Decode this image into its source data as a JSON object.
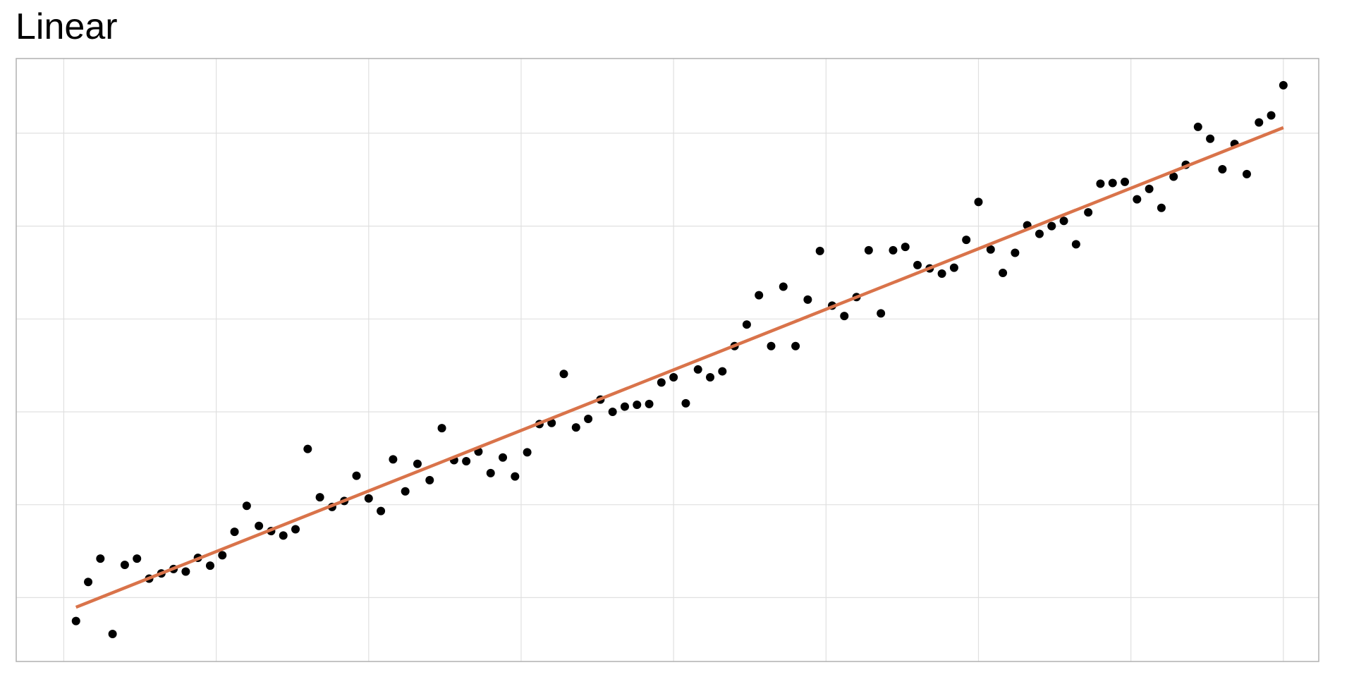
{
  "chart_data": {
    "type": "scatter",
    "title": "Linear",
    "x": [
      1,
      2,
      3,
      4,
      5,
      6,
      7,
      8,
      9,
      10,
      11,
      12,
      13,
      14,
      15,
      16,
      17,
      18,
      19,
      20,
      21,
      22,
      23,
      24,
      25,
      26,
      27,
      28,
      29,
      30,
      31,
      32,
      33,
      34,
      35,
      36,
      37,
      38,
      39,
      40,
      41,
      42,
      43,
      44,
      45,
      46,
      47,
      48,
      49,
      50,
      51,
      52,
      53,
      54,
      55,
      56,
      57,
      58,
      59,
      60,
      61,
      62,
      63,
      64,
      65,
      66,
      67,
      68,
      69,
      70,
      71,
      72,
      73,
      74,
      75,
      76,
      77,
      78,
      79,
      80,
      81,
      82,
      83,
      84,
      85,
      86,
      87,
      88,
      89,
      90,
      91,
      92,
      93,
      94,
      95,
      96,
      97,
      98,
      99,
      100
    ],
    "series": [
      {
        "color": "#000000",
        "values": [
          -6.3,
          4.2,
          10.5,
          -9.8,
          8.8,
          10.5,
          5.1,
          6.5,
          7.7,
          7.0,
          10.7,
          8.6,
          11.4,
          17.7,
          24.7,
          19.3,
          17.9,
          16.7,
          18.4,
          40.0,
          27.0,
          24.4,
          26.0,
          32.8,
          26.7,
          23.3,
          37.2,
          28.6,
          36.0,
          31.6,
          45.6,
          37.0,
          36.7,
          39.3,
          33.5,
          37.7,
          32.6,
          39.1,
          46.7,
          47.0,
          60.2,
          45.8,
          48.1,
          53.3,
          50.0,
          51.4,
          51.9,
          52.1,
          57.9,
          59.3,
          52.3,
          61.4,
          59.3,
          60.9,
          67.7,
          73.5,
          81.4,
          67.7,
          83.7,
          67.7,
          80.2,
          93.3,
          78.6,
          75.8,
          80.9,
          93.5,
          76.5,
          93.5,
          94.4,
          89.5,
          88.6,
          87.2,
          88.8,
          96.3,
          106.5,
          93.7,
          87.4,
          92.8,
          100.2,
          97.9,
          100.0,
          101.4,
          95.1,
          103.7,
          111.4,
          111.6,
          111.9,
          107.2,
          110.0,
          104.9,
          113.3,
          116.5,
          126.7,
          123.5,
          115.3,
          122.1,
          114.0,
          127.9,
          129.8,
          137.9
        ]
      }
    ],
    "fit": {
      "x": [
        1,
        100
      ],
      "y": [
        -2.6,
        126.5
      ],
      "color": "#d9734a"
    },
    "xlim": [
      -3.9,
      102.9
    ],
    "ylim": [
      -17.2,
      145.1
    ],
    "xticks": [
      0,
      12.5,
      25,
      37.5,
      50,
      62.5,
      75,
      87.5,
      100
    ],
    "yticks": [
      0,
      25,
      50,
      75,
      100,
      125
    ],
    "grid": true
  }
}
